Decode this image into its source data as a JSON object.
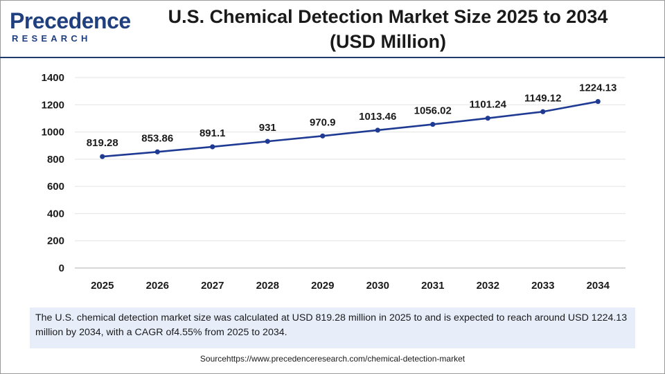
{
  "logo": {
    "line1": "Precedence",
    "line2": "RESEARCH"
  },
  "title": {
    "line1": "U.S. Chemical Detection Market Size 2025 to 2034",
    "line2": "(USD Million)"
  },
  "chart_data": {
    "type": "line",
    "title": "U.S. Chemical Detection Market Size 2025 to 2034 (USD Million)",
    "xlabel": "",
    "ylabel": "",
    "categories": [
      "2025",
      "2026",
      "2027",
      "2028",
      "2029",
      "2030",
      "2031",
      "2032",
      "2033",
      "2034"
    ],
    "values": [
      819.28,
      853.86,
      891.1,
      931,
      970.9,
      1013.46,
      1056.02,
      1101.24,
      1149.12,
      1224.13
    ],
    "labels": [
      "819.28",
      "853.86",
      "891.1",
      "931",
      "970.9",
      "1013.46",
      "1056.02",
      "1101.24",
      "1149.12",
      "1224.13"
    ],
    "ylim": [
      0,
      1400
    ],
    "yticks": [
      0,
      200,
      400,
      600,
      800,
      1000,
      1200,
      1400
    ],
    "grid": true,
    "line_color": "#1f3a93"
  },
  "summary": "The U.S. chemical detection market size was calculated at USD 819.28 million in 2025 to and is expected to reach around USD 1224.13 million by 2034, with a CAGR of4.55% from 2025 to 2034.",
  "source": "Sourcehttps://www.precedenceresearch.com/chemical-detection-market"
}
